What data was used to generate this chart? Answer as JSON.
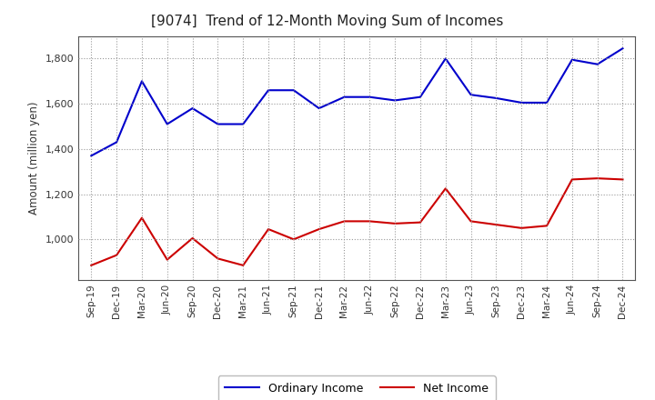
{
  "title": "[9074]  Trend of 12-Month Moving Sum of Incomes",
  "ylabel": "Amount (million yen)",
  "x_labels": [
    "Sep-19",
    "Dec-19",
    "Mar-20",
    "Jun-20",
    "Sep-20",
    "Dec-20",
    "Mar-21",
    "Jun-21",
    "Sep-21",
    "Dec-21",
    "Mar-22",
    "Jun-22",
    "Sep-22",
    "Dec-22",
    "Mar-23",
    "Jun-23",
    "Sep-23",
    "Dec-23",
    "Mar-24",
    "Jun-24",
    "Sep-24",
    "Dec-24"
  ],
  "ordinary_income": [
    1370,
    1430,
    1700,
    1510,
    1580,
    1510,
    1510,
    1660,
    1660,
    1580,
    1630,
    1630,
    1615,
    1630,
    1800,
    1640,
    1625,
    1605,
    1605,
    1795,
    1775,
    1845
  ],
  "net_income": [
    885,
    930,
    1095,
    910,
    1005,
    915,
    885,
    1045,
    1000,
    1045,
    1080,
    1080,
    1070,
    1075,
    1225,
    1080,
    1065,
    1050,
    1060,
    1265,
    1270,
    1265
  ],
  "ordinary_color": "#0000cc",
  "net_color": "#cc0000",
  "ylim_min": 820,
  "ylim_max": 1900,
  "yticks": [
    1000,
    1200,
    1400,
    1600,
    1800
  ],
  "background_color": "#ffffff",
  "grid_color": "#999999"
}
